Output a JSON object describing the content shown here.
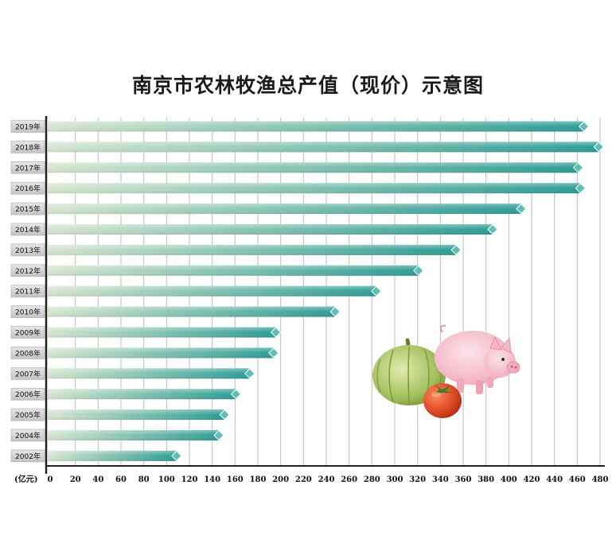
{
  "chart_data": {
    "type": "bar",
    "orientation": "horizontal",
    "title": "南京市农林牧渔总产值（现价）示意图",
    "unit_label": "(亿元)",
    "categories": [
      "2019年",
      "2018年",
      "2017年",
      "2016年",
      "2015年",
      "2014年",
      "2013年",
      "2012年",
      "2011年",
      "2010年",
      "2009年",
      "2008年",
      "2007年",
      "2006年",
      "2005年",
      "2004年",
      "2002年"
    ],
    "values": [
      470,
      483,
      465,
      467,
      415,
      390,
      358,
      325,
      288,
      252,
      200,
      198,
      177,
      165,
      155,
      150,
      113
    ],
    "x_ticks": [
      0,
      20,
      40,
      60,
      80,
      100,
      120,
      140,
      160,
      180,
      200,
      220,
      240,
      260,
      280,
      300,
      320,
      340,
      360,
      380,
      400,
      420,
      440,
      460,
      480
    ],
    "xlim": [
      0,
      480
    ],
    "grid": true,
    "colors": {
      "bar_start": "#d3e4cc",
      "bar_end": "#2f9d95",
      "bar_tip": "#5fbfb5",
      "label_box": "#d6d6d6",
      "grid": "#bdbdbd"
    },
    "decorations": [
      "pumpkin-icon",
      "pig-icon",
      "tomato-icon"
    ]
  }
}
